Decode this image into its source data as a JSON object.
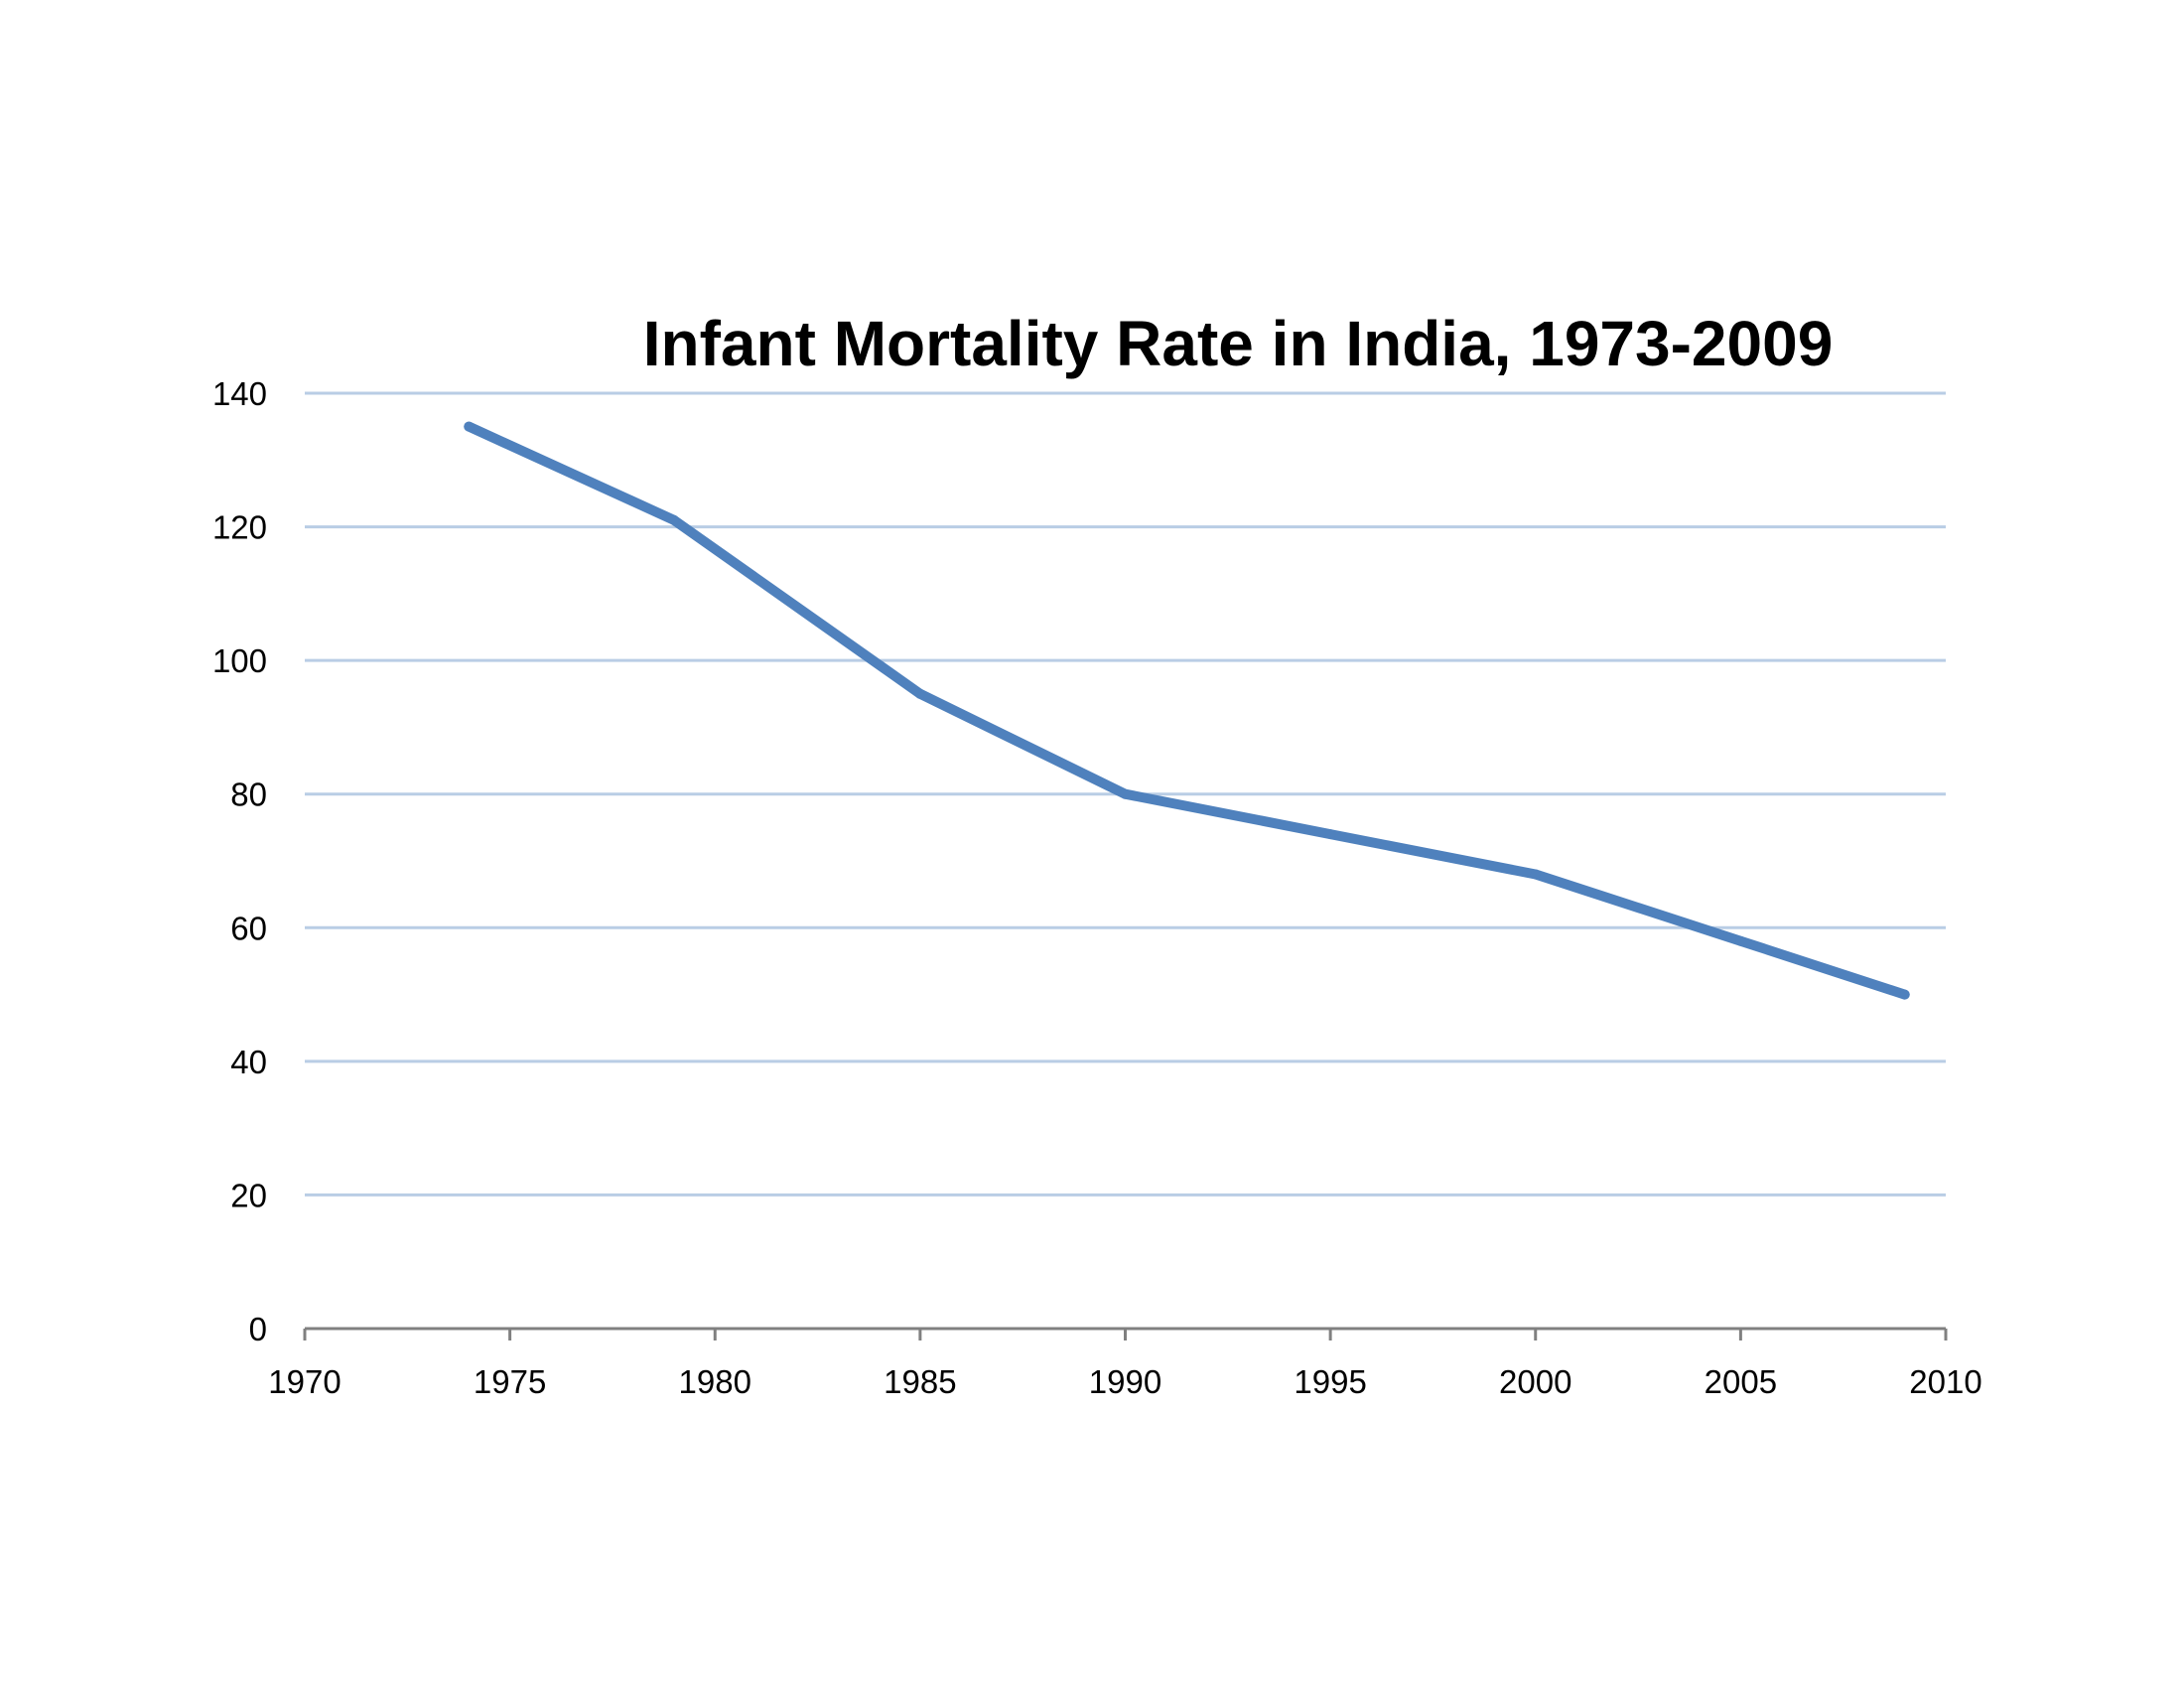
{
  "chart_data": {
    "type": "line",
    "title": "Infant Mortality Rate in India, 1973-2009",
    "xlabel": "",
    "ylabel": "",
    "xlim": [
      1970,
      2010
    ],
    "ylim": [
      0,
      140
    ],
    "x_ticks": [
      1970,
      1975,
      1980,
      1985,
      1990,
      1995,
      2000,
      2005,
      2010
    ],
    "y_ticks": [
      0,
      20,
      40,
      60,
      80,
      100,
      120,
      140
    ],
    "x_tick_labels": [
      "1970",
      "1975",
      "1980",
      "1985",
      "1990",
      "1995",
      "2000",
      "2005",
      "2010"
    ],
    "y_tick_labels": [
      "0",
      "20",
      "40",
      "60",
      "80",
      "100",
      "120",
      "140"
    ],
    "grid": true,
    "legend": "none",
    "series": [
      {
        "name": "Infant Mortality Rate",
        "color": "#4F81BD",
        "x": [
          1974,
          1979,
          1985,
          1990,
          1995,
          2000,
          2005,
          2009
        ],
        "values": [
          135,
          121,
          95,
          80,
          74,
          68,
          58,
          50
        ]
      }
    ],
    "colors": {
      "gridline": "#B9CDE5",
      "axis": "#808080"
    }
  }
}
